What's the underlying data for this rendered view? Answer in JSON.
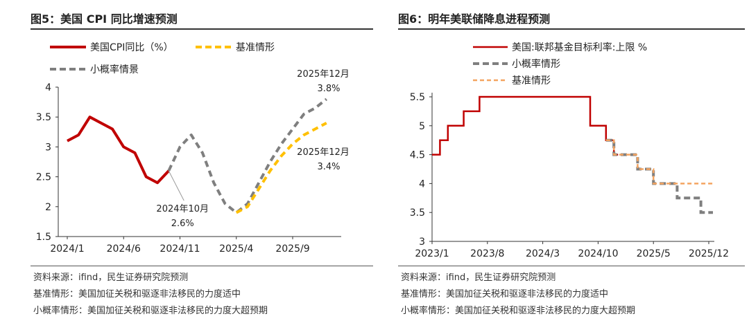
{
  "figures": [
    {
      "title": "图5：美国 CPI 同比增速预测",
      "notes": [
        "资料来源：ifind，民生证券研究院预测",
        "基准情形：美国加征关税和驱逐非法移民的力度适中",
        "小概率情形：美国加征关税和驱逐非法移民的力度大超预期"
      ]
    },
    {
      "title": "图6：明年美联储降息进程预测",
      "notes": [
        "资料来源：ifind，民生证券研究院预测",
        "基准情形：美国加征关税和驱逐非法移民的力度适中",
        "小概率情形：美国加征关税和驱逐非法移民的力度大超预期"
      ]
    }
  ],
  "chart_data": [
    {
      "type": "line",
      "title": "",
      "x_ticks": [
        "2024/1",
        "2024/6",
        "2024/11",
        "2025/4",
        "2025/9"
      ],
      "y_ticks": [
        "1.5",
        "2",
        "2.5",
        "3",
        "3.5",
        "4"
      ],
      "ylim": [
        1.5,
        4
      ],
      "grid": false,
      "legend": [
        "美国CPI同比（%）",
        "基准情形",
        "小概率情景"
      ],
      "series": [
        {
          "name": "美国CPI同比（%）",
          "color": "#c00000",
          "style": "solid",
          "x": [
            "2024/1",
            "2024/2",
            "2024/3",
            "2024/4",
            "2024/5",
            "2024/6",
            "2024/7",
            "2024/8",
            "2024/9",
            "2024/10"
          ],
          "values": [
            3.1,
            3.2,
            3.5,
            3.4,
            3.3,
            3.0,
            2.9,
            2.5,
            2.4,
            2.6
          ]
        },
        {
          "name": "小概率情景",
          "color": "#7f7f7f",
          "style": "dash",
          "x": [
            "2024/10",
            "2024/11",
            "2024/12",
            "2025/1",
            "2025/2",
            "2025/3",
            "2025/4",
            "2025/5",
            "2025/6",
            "2025/7",
            "2025/8",
            "2025/9",
            "2025/10",
            "2025/11",
            "2025/12"
          ],
          "values": [
            2.6,
            3.0,
            3.2,
            2.9,
            2.4,
            2.05,
            1.9,
            2.05,
            2.4,
            2.75,
            3.05,
            3.3,
            3.55,
            3.65,
            3.8
          ]
        },
        {
          "name": "基准情形",
          "color": "#ffc000",
          "style": "dash",
          "x": [
            "2025/4",
            "2025/5",
            "2025/6",
            "2025/7",
            "2025/8",
            "2025/9",
            "2025/10",
            "2025/11",
            "2025/12"
          ],
          "values": [
            1.9,
            2.0,
            2.3,
            2.6,
            2.85,
            3.05,
            3.2,
            3.3,
            3.4
          ]
        }
      ],
      "annotations": [
        {
          "label": "2024年10月",
          "value": "2.6%"
        },
        {
          "label": "2025年12月",
          "value": "3.8%"
        },
        {
          "label": "2025年12月",
          "value": "3.4%"
        }
      ]
    },
    {
      "type": "line",
      "title": "",
      "x_ticks": [
        "2023/1",
        "2023/8",
        "2024/3",
        "2024/10",
        "2025/5",
        "2025/12"
      ],
      "y_ticks": [
        "3",
        "3.5",
        "4",
        "4.5",
        "5",
        "5.5"
      ],
      "ylim": [
        3,
        5.5
      ],
      "grid": false,
      "legend": [
        "美国:联邦基金目标利率:上限 %",
        "小概率情形",
        "基准情形"
      ],
      "series": [
        {
          "name": "美国:联邦基金目标利率:上限 %",
          "color": "#c00000",
          "style": "step",
          "x": [
            "2023/1",
            "2023/2",
            "2023/3",
            "2023/5",
            "2023/7",
            "2024/9",
            "2024/11",
            "2024/12"
          ],
          "values": [
            4.5,
            4.75,
            5.0,
            5.25,
            5.5,
            5.0,
            4.75,
            4.5
          ]
        },
        {
          "name": "小概率情形",
          "color": "#7f7f7f",
          "style": "step-dash",
          "x": [
            "2024/11",
            "2024/12",
            "2025/3",
            "2025/5",
            "2025/8",
            "2025/11",
            "2025/12"
          ],
          "values": [
            4.75,
            4.5,
            4.25,
            4.0,
            3.75,
            3.5,
            3.5
          ]
        },
        {
          "name": "基准情形",
          "color": "#f4a460",
          "style": "step-dash",
          "x": [
            "2024/11",
            "2024/12",
            "2025/3",
            "2025/5",
            "2025/12"
          ],
          "values": [
            4.75,
            4.5,
            4.25,
            4.0,
            4.0
          ]
        }
      ]
    }
  ]
}
